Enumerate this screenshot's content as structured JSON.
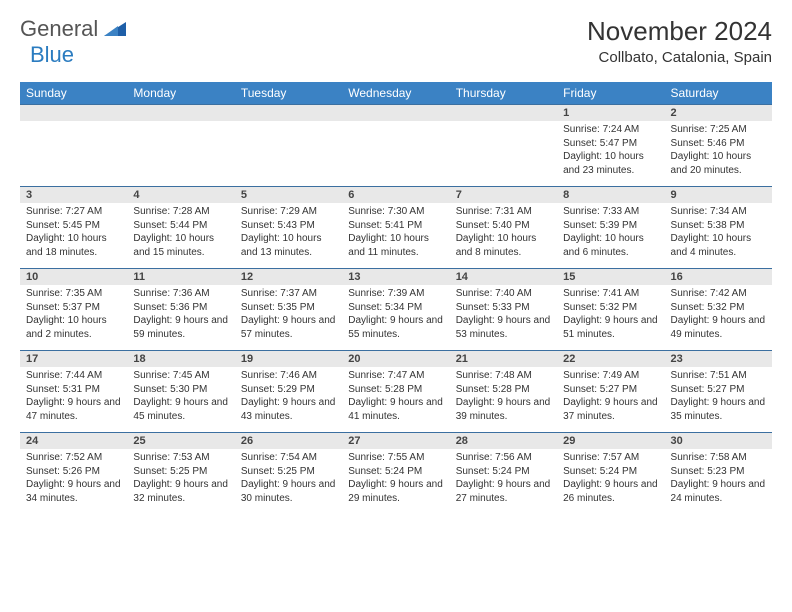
{
  "colors": {
    "header_bg": "#3b82c4",
    "header_text": "#ffffff",
    "daynum_bg": "#e8e8e8",
    "body_text": "#333333",
    "row_border": "#3b6fa0",
    "logo_gray": "#555555",
    "logo_blue": "#2b7cc0",
    "page_bg": "#ffffff"
  },
  "logo": {
    "word1": "General",
    "word2": "Blue"
  },
  "title": "November 2024",
  "location": "Collbato, Catalonia, Spain",
  "day_headers": [
    "Sunday",
    "Monday",
    "Tuesday",
    "Wednesday",
    "Thursday",
    "Friday",
    "Saturday"
  ],
  "fonts": {
    "title_size": 26,
    "location_size": 15,
    "header_size": 12,
    "daynum_size": 11,
    "body_size": 10
  },
  "weeks": [
    [
      {
        "n": "",
        "sr": "",
        "ss": "",
        "dl": ""
      },
      {
        "n": "",
        "sr": "",
        "ss": "",
        "dl": ""
      },
      {
        "n": "",
        "sr": "",
        "ss": "",
        "dl": ""
      },
      {
        "n": "",
        "sr": "",
        "ss": "",
        "dl": ""
      },
      {
        "n": "",
        "sr": "",
        "ss": "",
        "dl": ""
      },
      {
        "n": "1",
        "sr": "Sunrise: 7:24 AM",
        "ss": "Sunset: 5:47 PM",
        "dl": "Daylight: 10 hours and 23 minutes."
      },
      {
        "n": "2",
        "sr": "Sunrise: 7:25 AM",
        "ss": "Sunset: 5:46 PM",
        "dl": "Daylight: 10 hours and 20 minutes."
      }
    ],
    [
      {
        "n": "3",
        "sr": "Sunrise: 7:27 AM",
        "ss": "Sunset: 5:45 PM",
        "dl": "Daylight: 10 hours and 18 minutes."
      },
      {
        "n": "4",
        "sr": "Sunrise: 7:28 AM",
        "ss": "Sunset: 5:44 PM",
        "dl": "Daylight: 10 hours and 15 minutes."
      },
      {
        "n": "5",
        "sr": "Sunrise: 7:29 AM",
        "ss": "Sunset: 5:43 PM",
        "dl": "Daylight: 10 hours and 13 minutes."
      },
      {
        "n": "6",
        "sr": "Sunrise: 7:30 AM",
        "ss": "Sunset: 5:41 PM",
        "dl": "Daylight: 10 hours and 11 minutes."
      },
      {
        "n": "7",
        "sr": "Sunrise: 7:31 AM",
        "ss": "Sunset: 5:40 PM",
        "dl": "Daylight: 10 hours and 8 minutes."
      },
      {
        "n": "8",
        "sr": "Sunrise: 7:33 AM",
        "ss": "Sunset: 5:39 PM",
        "dl": "Daylight: 10 hours and 6 minutes."
      },
      {
        "n": "9",
        "sr": "Sunrise: 7:34 AM",
        "ss": "Sunset: 5:38 PM",
        "dl": "Daylight: 10 hours and 4 minutes."
      }
    ],
    [
      {
        "n": "10",
        "sr": "Sunrise: 7:35 AM",
        "ss": "Sunset: 5:37 PM",
        "dl": "Daylight: 10 hours and 2 minutes."
      },
      {
        "n": "11",
        "sr": "Sunrise: 7:36 AM",
        "ss": "Sunset: 5:36 PM",
        "dl": "Daylight: 9 hours and 59 minutes."
      },
      {
        "n": "12",
        "sr": "Sunrise: 7:37 AM",
        "ss": "Sunset: 5:35 PM",
        "dl": "Daylight: 9 hours and 57 minutes."
      },
      {
        "n": "13",
        "sr": "Sunrise: 7:39 AM",
        "ss": "Sunset: 5:34 PM",
        "dl": "Daylight: 9 hours and 55 minutes."
      },
      {
        "n": "14",
        "sr": "Sunrise: 7:40 AM",
        "ss": "Sunset: 5:33 PM",
        "dl": "Daylight: 9 hours and 53 minutes."
      },
      {
        "n": "15",
        "sr": "Sunrise: 7:41 AM",
        "ss": "Sunset: 5:32 PM",
        "dl": "Daylight: 9 hours and 51 minutes."
      },
      {
        "n": "16",
        "sr": "Sunrise: 7:42 AM",
        "ss": "Sunset: 5:32 PM",
        "dl": "Daylight: 9 hours and 49 minutes."
      }
    ],
    [
      {
        "n": "17",
        "sr": "Sunrise: 7:44 AM",
        "ss": "Sunset: 5:31 PM",
        "dl": "Daylight: 9 hours and 47 minutes."
      },
      {
        "n": "18",
        "sr": "Sunrise: 7:45 AM",
        "ss": "Sunset: 5:30 PM",
        "dl": "Daylight: 9 hours and 45 minutes."
      },
      {
        "n": "19",
        "sr": "Sunrise: 7:46 AM",
        "ss": "Sunset: 5:29 PM",
        "dl": "Daylight: 9 hours and 43 minutes."
      },
      {
        "n": "20",
        "sr": "Sunrise: 7:47 AM",
        "ss": "Sunset: 5:28 PM",
        "dl": "Daylight: 9 hours and 41 minutes."
      },
      {
        "n": "21",
        "sr": "Sunrise: 7:48 AM",
        "ss": "Sunset: 5:28 PM",
        "dl": "Daylight: 9 hours and 39 minutes."
      },
      {
        "n": "22",
        "sr": "Sunrise: 7:49 AM",
        "ss": "Sunset: 5:27 PM",
        "dl": "Daylight: 9 hours and 37 minutes."
      },
      {
        "n": "23",
        "sr": "Sunrise: 7:51 AM",
        "ss": "Sunset: 5:27 PM",
        "dl": "Daylight: 9 hours and 35 minutes."
      }
    ],
    [
      {
        "n": "24",
        "sr": "Sunrise: 7:52 AM",
        "ss": "Sunset: 5:26 PM",
        "dl": "Daylight: 9 hours and 34 minutes."
      },
      {
        "n": "25",
        "sr": "Sunrise: 7:53 AM",
        "ss": "Sunset: 5:25 PM",
        "dl": "Daylight: 9 hours and 32 minutes."
      },
      {
        "n": "26",
        "sr": "Sunrise: 7:54 AM",
        "ss": "Sunset: 5:25 PM",
        "dl": "Daylight: 9 hours and 30 minutes."
      },
      {
        "n": "27",
        "sr": "Sunrise: 7:55 AM",
        "ss": "Sunset: 5:24 PM",
        "dl": "Daylight: 9 hours and 29 minutes."
      },
      {
        "n": "28",
        "sr": "Sunrise: 7:56 AM",
        "ss": "Sunset: 5:24 PM",
        "dl": "Daylight: 9 hours and 27 minutes."
      },
      {
        "n": "29",
        "sr": "Sunrise: 7:57 AM",
        "ss": "Sunset: 5:24 PM",
        "dl": "Daylight: 9 hours and 26 minutes."
      },
      {
        "n": "30",
        "sr": "Sunrise: 7:58 AM",
        "ss": "Sunset: 5:23 PM",
        "dl": "Daylight: 9 hours and 24 minutes."
      }
    ]
  ]
}
